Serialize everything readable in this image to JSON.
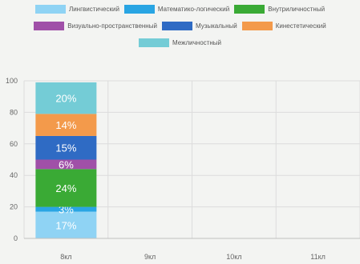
{
  "colors": {
    "grid": "#dcdcdc",
    "axis": "#bfbfbf",
    "series": [
      "#8fd3f4",
      "#29a5e3",
      "#3aaa35",
      "#a050a8",
      "#2f6bc4",
      "#f39a4b",
      "#74ccd6"
    ]
  },
  "chart_data": {
    "type": "bar",
    "stacked": true,
    "categories": [
      "8кл",
      "9кл",
      "10кл",
      "11кл"
    ],
    "series": [
      {
        "name": "Лингвистический",
        "values": [
          17,
          0,
          0,
          0
        ],
        "labels": [
          "17%",
          "",
          "",
          ""
        ]
      },
      {
        "name": "Математико-логический",
        "values": [
          3,
          0,
          0,
          0
        ],
        "labels": [
          "3%",
          "",
          "",
          ""
        ]
      },
      {
        "name": "Внутриличностный",
        "values": [
          24,
          0,
          0,
          0
        ],
        "labels": [
          "24%",
          "",
          "",
          ""
        ]
      },
      {
        "name": "Визуально-пространственный",
        "values": [
          6,
          0,
          0,
          0
        ],
        "labels": [
          "6%",
          "",
          "",
          ""
        ]
      },
      {
        "name": "Музыкальный",
        "values": [
          15,
          0,
          0,
          0
        ],
        "labels": [
          "15%",
          "",
          "",
          ""
        ]
      },
      {
        "name": "Кинестетический",
        "values": [
          14,
          0,
          0,
          0
        ],
        "labels": [
          "14%",
          "",
          "",
          ""
        ]
      },
      {
        "name": "Межличностный",
        "values": [
          20,
          0,
          0,
          0
        ],
        "labels": [
          "20%",
          "",
          "",
          ""
        ]
      }
    ],
    "yticks": [
      "0",
      "20",
      "40",
      "60",
      "80",
      "100"
    ],
    "ylim": [
      0,
      100
    ],
    "legend_position": "top",
    "grid": true
  }
}
